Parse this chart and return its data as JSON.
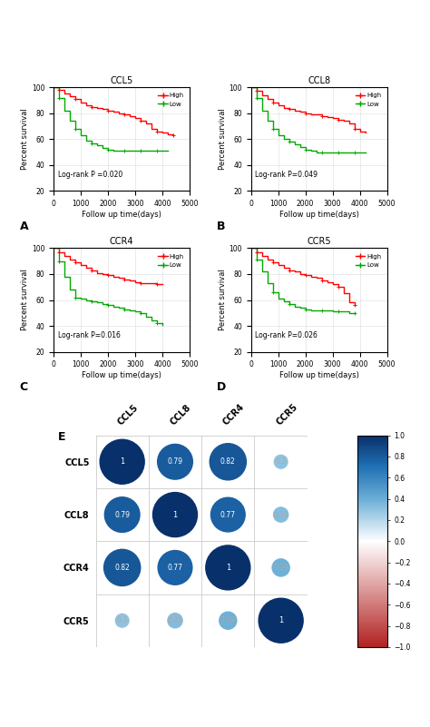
{
  "km_plots": [
    {
      "title": "CCL5",
      "label": "A",
      "pvalue": "Log-rank P =0.020",
      "high": {
        "x": [
          0,
          200,
          400,
          600,
          800,
          1000,
          1200,
          1400,
          1600,
          1800,
          2000,
          2200,
          2400,
          2600,
          2800,
          3000,
          3200,
          3400,
          3600,
          3800,
          4000,
          4200,
          4400
        ],
        "y": [
          100,
          98,
          95,
          93,
          91,
          88,
          86,
          85,
          84,
          83,
          82,
          81,
          80,
          79,
          78,
          76,
          74,
          72,
          68,
          66,
          65,
          64,
          63
        ]
      },
      "low": {
        "x": [
          0,
          200,
          400,
          600,
          800,
          1000,
          1200,
          1400,
          1600,
          1800,
          2000,
          2200,
          2400,
          2600,
          2800,
          3000,
          3200,
          3400,
          3600,
          3800,
          4000,
          4200
        ],
        "y": [
          100,
          92,
          82,
          74,
          68,
          63,
          59,
          57,
          55,
          53,
          52,
          51,
          51,
          51,
          51,
          51,
          51,
          51,
          51,
          51,
          51,
          51
        ]
      }
    },
    {
      "title": "CCL8",
      "label": "B",
      "pvalue": "Log-rank P=0.049",
      "high": {
        "x": [
          0,
          200,
          400,
          600,
          800,
          1000,
          1200,
          1400,
          1600,
          1800,
          2000,
          2200,
          2400,
          2600,
          2800,
          3000,
          3200,
          3400,
          3600,
          3800,
          4000,
          4200
        ],
        "y": [
          100,
          97,
          94,
          91,
          88,
          86,
          84,
          83,
          82,
          81,
          80,
          79,
          79,
          78,
          77,
          76,
          75,
          74,
          72,
          68,
          66,
          65
        ]
      },
      "low": {
        "x": [
          0,
          200,
          400,
          600,
          800,
          1000,
          1200,
          1400,
          1600,
          1800,
          2000,
          2200,
          2400,
          2600,
          2800,
          3000,
          3200,
          3400,
          3600,
          3800,
          4000,
          4200
        ],
        "y": [
          100,
          92,
          82,
          74,
          68,
          63,
          60,
          58,
          56,
          54,
          52,
          51,
          50,
          50,
          50,
          50,
          50,
          50,
          50,
          50,
          50,
          50
        ]
      }
    },
    {
      "title": "CCR4",
      "label": "C",
      "pvalue": "Log-rank P=0.016",
      "high": {
        "x": [
          0,
          200,
          400,
          600,
          800,
          1000,
          1200,
          1400,
          1600,
          1800,
          2000,
          2200,
          2400,
          2600,
          2800,
          3000,
          3200,
          3400,
          3600,
          3800,
          4000
        ],
        "y": [
          100,
          97,
          94,
          91,
          89,
          87,
          85,
          83,
          81,
          80,
          79,
          78,
          77,
          76,
          75,
          74,
          73,
          73,
          73,
          72,
          72
        ]
      },
      "low": {
        "x": [
          0,
          200,
          400,
          600,
          800,
          1000,
          1200,
          1400,
          1600,
          1800,
          2000,
          2200,
          2400,
          2600,
          2800,
          3000,
          3200,
          3400,
          3600,
          3800,
          4000
        ],
        "y": [
          100,
          90,
          78,
          68,
          62,
          61,
          60,
          59,
          58,
          57,
          56,
          55,
          54,
          53,
          52,
          51,
          50,
          47,
          44,
          42,
          41
        ]
      }
    },
    {
      "title": "CCR5",
      "label": "D",
      "pvalue": "Log-rank P=0.026",
      "high": {
        "x": [
          0,
          200,
          400,
          600,
          800,
          1000,
          1200,
          1400,
          1600,
          1800,
          2000,
          2200,
          2400,
          2600,
          2800,
          3000,
          3200,
          3400,
          3600,
          3800
        ],
        "y": [
          100,
          97,
          94,
          91,
          89,
          87,
          85,
          83,
          82,
          80,
          79,
          78,
          77,
          75,
          74,
          72,
          70,
          65,
          58,
          56
        ]
      },
      "low": {
        "x": [
          0,
          200,
          400,
          600,
          800,
          1000,
          1200,
          1400,
          1600,
          1800,
          2000,
          2200,
          2400,
          2600,
          2800,
          3000,
          3200,
          3400,
          3600,
          3800
        ],
        "y": [
          100,
          91,
          82,
          73,
          66,
          61,
          59,
          57,
          55,
          54,
          53,
          52,
          52,
          52,
          52,
          51,
          51,
          51,
          50,
          50
        ]
      }
    }
  ],
  "corr_matrix": {
    "labels": [
      "CCL5",
      "CCL8",
      "CCR4",
      "CCR5"
    ],
    "values": [
      [
        1.0,
        0.79,
        0.82,
        0.3
      ],
      [
        0.79,
        1.0,
        0.77,
        0.33
      ],
      [
        0.82,
        0.77,
        1.0,
        0.39
      ],
      [
        0.3,
        0.33,
        0.39,
        1.0
      ]
    ],
    "display": [
      [
        "1",
        "0.79",
        "0.82",
        "0.3"
      ],
      [
        "0.79",
        "1",
        "0.77",
        "0.33"
      ],
      [
        "0.82",
        "0.77",
        "1",
        "0.39"
      ],
      [
        "0.3",
        "0.33",
        "0.39",
        "1"
      ]
    ]
  },
  "high_color": "#FF0000",
  "low_color": "#00AA00",
  "xlim": [
    0,
    5000
  ],
  "ylim": [
    20,
    100
  ],
  "yticks": [
    20,
    40,
    60,
    80,
    100
  ],
  "xticks": [
    0,
    1000,
    2000,
    3000,
    4000,
    5000
  ],
  "xlabel": "Follow up time(days)",
  "ylabel": "Percent survival"
}
